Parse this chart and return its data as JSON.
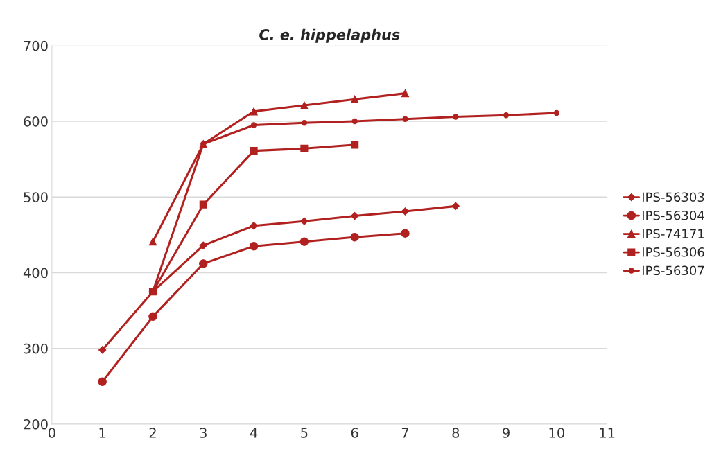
{
  "chart_data": {
    "type": "line",
    "title": "C. e. hippelaphus",
    "xlim": [
      0,
      11
    ],
    "xticks": [
      0,
      1,
      2,
      3,
      4,
      5,
      6,
      7,
      8,
      9,
      10,
      11
    ],
    "ylim": [
      200,
      700
    ],
    "yticks": [
      200,
      300,
      400,
      500,
      600,
      700
    ],
    "grid": "y",
    "legend": "right",
    "series": [
      {
        "name": "IPS-56303",
        "color": "#b0211f",
        "marker": "diamond",
        "x": [
          1,
          2,
          3,
          4,
          5,
          6,
          7,
          8
        ],
        "values": [
          298,
          375,
          436,
          462,
          468,
          475,
          481,
          488
        ]
      },
      {
        "name": "IPS-56304",
        "color": "#b0211f",
        "marker": "circle",
        "x": [
          1,
          2,
          3,
          4,
          5,
          6,
          7
        ],
        "values": [
          256,
          342,
          412,
          435,
          441,
          447,
          452
        ]
      },
      {
        "name": "IPS-74171",
        "color": "#b0211f",
        "marker": "triangle",
        "x": [
          2,
          3,
          4,
          5,
          6,
          7
        ],
        "values": [
          441,
          570,
          613,
          621,
          629,
          637
        ]
      },
      {
        "name": "IPS-56306",
        "color": "#b0211f",
        "marker": "square",
        "x": [
          2,
          3,
          4,
          5,
          6
        ],
        "values": [
          375,
          490,
          561,
          564,
          569
        ]
      },
      {
        "name": "IPS-56307",
        "color": "#b0211f",
        "marker": "smallcircle",
        "x": [
          2,
          3,
          4,
          5,
          6,
          7,
          8,
          9,
          10
        ],
        "values": [
          375,
          570,
          595,
          598,
          600,
          603,
          606,
          608,
          611
        ]
      }
    ]
  }
}
